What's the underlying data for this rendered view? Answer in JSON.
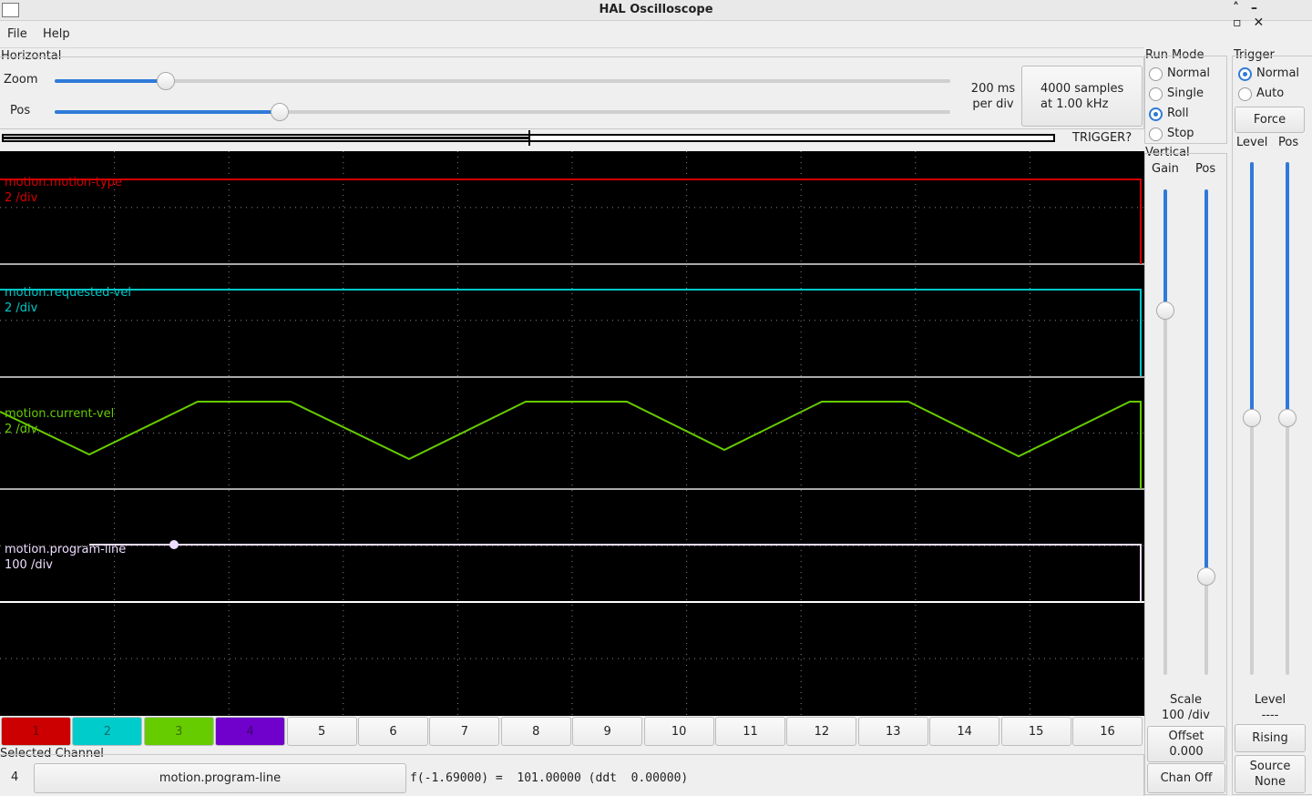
{
  "window_title": "HAL Oscilloscope",
  "menu": [
    "File",
    "Help"
  ],
  "horizontal": {
    "title": "Horizontal",
    "zoom": "Zoom",
    "pos": "Pos",
    "rate": [
      "200 ms",
      "per div"
    ],
    "samples": [
      "4000 samples",
      "at 1.00 kHz"
    ],
    "trigger_status": "TRIGGER?"
  },
  "run_mode": {
    "title": "Run Mode",
    "options": [
      "Normal",
      "Single",
      "Roll",
      "Stop"
    ]
  },
  "vertical": {
    "title": "Vertical",
    "gain": "Gain",
    "pos": "Pos",
    "scale": [
      "Scale",
      "100 /div"
    ],
    "offset": [
      "Offset",
      "0.000"
    ],
    "chan_off": "Chan Off"
  },
  "trigger": {
    "title": "Trigger",
    "options": [
      "Normal",
      "Auto"
    ],
    "force": "Force",
    "level": "Level",
    "pos": "Pos",
    "level_label": "Level",
    "level_value": "----",
    "edge": "Rising",
    "source": [
      "Source",
      "None"
    ]
  },
  "traces": [
    {
      "name": "motion.motion-type",
      "scale": "2 /div",
      "color": "#d40000"
    },
    {
      "name": "motion.requested-vel",
      "scale": "2 /div",
      "color": "#00c8c8"
    },
    {
      "name": "motion.current-vel",
      "scale": "2 /div",
      "color": "#66cc00"
    },
    {
      "name": "motion.program-line",
      "scale": "100 /div",
      "color": "#ecdcff"
    }
  ],
  "channels": [
    {
      "label": "1",
      "color": "#cc0000"
    },
    {
      "label": "2",
      "color": "#00cccc"
    },
    {
      "label": "3",
      "color": "#66cc00"
    },
    {
      "label": "4",
      "color": "#7000cc"
    },
    {
      "label": "5"
    },
    {
      "label": "6"
    },
    {
      "label": "7"
    },
    {
      "label": "8"
    },
    {
      "label": "9"
    },
    {
      "label": "10"
    },
    {
      "label": "11"
    },
    {
      "label": "12"
    },
    {
      "label": "13"
    },
    {
      "label": "14"
    },
    {
      "label": "15"
    },
    {
      "label": "16"
    }
  ],
  "selected_channel": {
    "title": "Selected Channel",
    "number": "4",
    "name": "motion.program-line",
    "readout": "f(-1.69000) =  101.00000 (ddt  0.00000)"
  }
}
